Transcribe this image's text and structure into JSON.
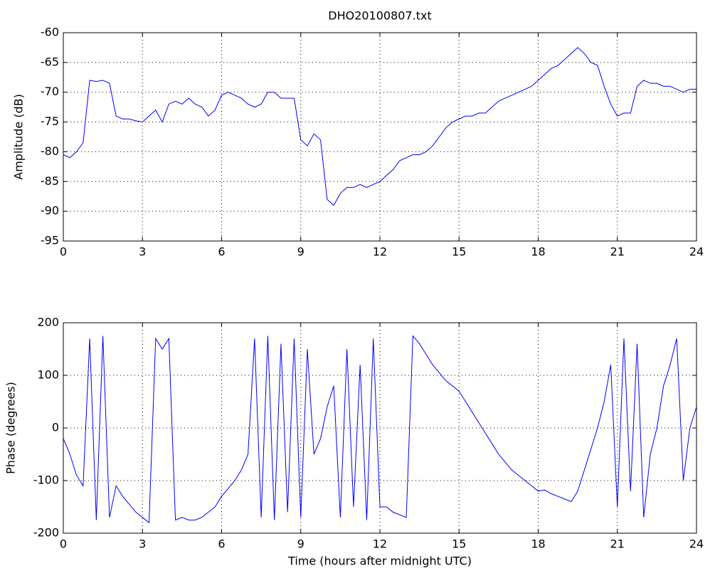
{
  "chart_data": [
    {
      "type": "line",
      "title": "DHO20100807.txt",
      "ylabel": "Amplitude (dB)",
      "color": "#0000ff",
      "grid": true,
      "x": [
        0,
        0.25,
        0.5,
        0.75,
        1,
        1.25,
        1.5,
        1.75,
        2,
        2.25,
        2.5,
        2.75,
        3,
        3.25,
        3.5,
        3.75,
        4,
        4.25,
        4.5,
        4.75,
        5,
        5.25,
        5.5,
        5.75,
        6,
        6.25,
        6.5,
        6.75,
        7,
        7.25,
        7.5,
        7.75,
        8,
        8.25,
        8.5,
        8.75,
        9,
        9.25,
        9.5,
        9.75,
        10,
        10.25,
        10.5,
        10.75,
        11,
        11.25,
        11.5,
        11.75,
        12,
        12.25,
        12.5,
        12.75,
        13,
        13.25,
        13.5,
        13.75,
        14,
        14.25,
        14.5,
        14.75,
        15,
        15.25,
        15.5,
        15.75,
        16,
        16.25,
        16.5,
        16.75,
        17,
        17.25,
        17.5,
        17.75,
        18,
        18.25,
        18.5,
        18.75,
        19,
        19.25,
        19.5,
        19.75,
        20,
        20.25,
        20.5,
        20.75,
        21,
        21.25,
        21.5,
        21.75,
        22,
        22.25,
        22.5,
        22.75,
        23,
        23.25,
        23.5,
        23.75,
        24
      ],
      "values": [
        -80.5,
        -81,
        -80,
        -78.5,
        -68,
        -68.2,
        -68,
        -68.5,
        -74,
        -74.5,
        -74.5,
        -74.8,
        -75,
        -74,
        -73,
        -75,
        -72,
        -71.5,
        -72,
        -71,
        -72,
        -72.5,
        -74,
        -73,
        -70.5,
        -70,
        -70.5,
        -71,
        -72,
        -72.5,
        -72,
        -70,
        -70,
        -71,
        -71,
        -71,
        -78,
        -79,
        -77,
        -78,
        -88,
        -89,
        -87,
        -86,
        -86,
        -85.5,
        -86,
        -85.5,
        -85,
        -84,
        -83,
        -81.5,
        -81,
        -80.5,
        -80.5,
        -80,
        -79,
        -77.5,
        -76,
        -75,
        -74.5,
        -74,
        -74,
        -73.5,
        -73.5,
        -72.5,
        -71.5,
        -71,
        -70.5,
        -70,
        -69.5,
        -69,
        -68,
        -67,
        -66,
        -65.5,
        -64.5,
        -63.5,
        -62.5,
        -63.5,
        -65,
        -65.5,
        -69,
        -72,
        -74,
        -73.5,
        -73.5,
        -69,
        -68,
        -68.5,
        -68.5,
        -69,
        -69,
        -69.5,
        -70,
        -69.5,
        -69.5
      ],
      "xlim": [
        0,
        24
      ],
      "xticks": [
        0,
        3,
        6,
        9,
        12,
        15,
        18,
        21,
        24
      ],
      "ylim": [
        -95,
        -60
      ],
      "yticks": [
        -95,
        -90,
        -85,
        -80,
        -75,
        -70,
        -65,
        -60
      ]
    },
    {
      "type": "line",
      "ylabel": "Phase (degrees)",
      "xlabel": "Time (hours after midnight UTC)",
      "color": "#0000ff",
      "grid": true,
      "x": [
        0,
        0.25,
        0.5,
        0.75,
        1,
        1.25,
        1.5,
        1.75,
        2,
        2.25,
        2.5,
        2.75,
        3,
        3.25,
        3.5,
        3.75,
        4,
        4.25,
        4.5,
        4.75,
        5,
        5.25,
        5.5,
        5.75,
        6,
        6.25,
        6.5,
        6.75,
        7,
        7.25,
        7.5,
        7.75,
        8,
        8.25,
        8.5,
        8.75,
        9,
        9.25,
        9.5,
        9.75,
        10,
        10.25,
        10.5,
        10.75,
        11,
        11.25,
        11.5,
        11.75,
        12,
        12.25,
        12.5,
        12.75,
        13,
        13.25,
        13.5,
        13.75,
        14,
        14.25,
        14.5,
        14.75,
        15,
        15.25,
        15.5,
        15.75,
        16,
        16.25,
        16.5,
        16.75,
        17,
        17.25,
        17.5,
        17.75,
        18,
        18.25,
        18.5,
        18.75,
        19,
        19.25,
        19.5,
        19.75,
        20,
        20.25,
        20.5,
        20.75,
        21,
        21.25,
        21.5,
        21.75,
        22,
        22.25,
        22.5,
        22.75,
        23,
        23.25,
        23.5,
        23.75,
        24
      ],
      "values": [
        -20,
        -50,
        -90,
        -110,
        170,
        -175,
        175,
        -170,
        -110,
        -130,
        -145,
        -160,
        -170,
        -180,
        170,
        150,
        170,
        -175,
        -170,
        -175,
        -175,
        -170,
        -160,
        -150,
        -130,
        -115,
        -100,
        -80,
        -50,
        170,
        -170,
        175,
        -175,
        160,
        -160,
        170,
        -170,
        150,
        -50,
        -20,
        40,
        80,
        -170,
        150,
        -150,
        120,
        -175,
        170,
        -150,
        -150,
        -160,
        -165,
        -170,
        175,
        160,
        140,
        120,
        105,
        90,
        80,
        70,
        50,
        30,
        10,
        -10,
        -30,
        -50,
        -65,
        -80,
        -90,
        -100,
        -110,
        -120,
        -118,
        -125,
        -130,
        -135,
        -140,
        -120,
        -80,
        -40,
        0,
        50,
        120,
        -150,
        170,
        -120,
        160,
        -170,
        -50,
        0,
        80,
        120,
        170,
        -100,
        0,
        40
      ],
      "xlim": [
        0,
        24
      ],
      "xticks": [
        0,
        3,
        6,
        9,
        12,
        15,
        18,
        21,
        24
      ],
      "ylim": [
        -200,
        200
      ],
      "yticks": [
        -200,
        -100,
        0,
        100,
        200
      ]
    }
  ]
}
